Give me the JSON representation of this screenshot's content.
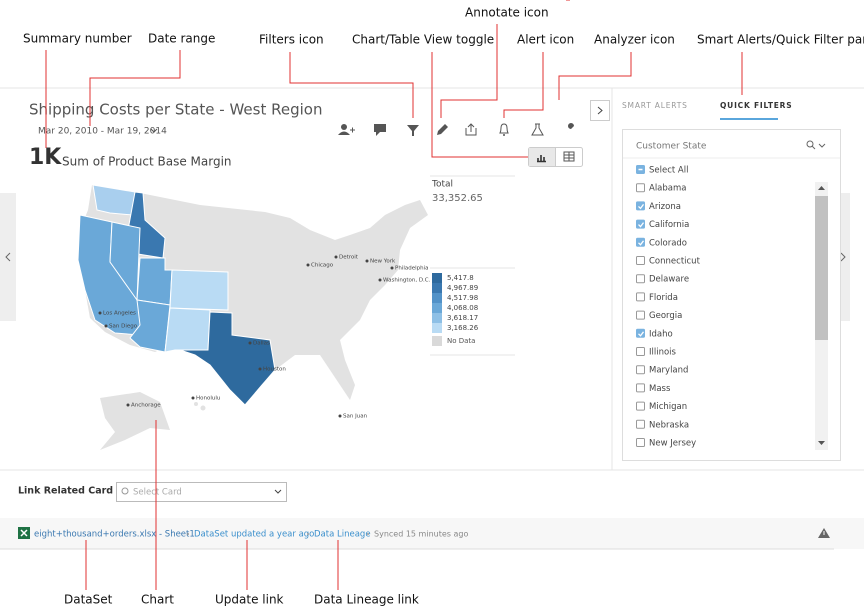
{
  "annotations": {
    "summary_number": "Summary number",
    "date_range": "Date range",
    "filters_icon": "Filters icon",
    "view_toggle": "Chart/Table View toggle",
    "annotate_icon": "Annotate icon",
    "alert_icon": "Alert icon",
    "analyzer_icon": "Analyzer icon",
    "panel": "Smart Alerts/Quick Filter pane",
    "dataset": "DataSet",
    "chart": "Chart",
    "update_link": "Update link",
    "lineage_link": "Data Lineage link"
  },
  "card": {
    "title": "Shipping Costs per State - West Region",
    "date_range": "Mar 20, 2010 - Mar 19, 2014",
    "summary_value": "1K",
    "summary_label": "Sum of Product Base Margin",
    "total_label": "Total",
    "total_value": "33,352.65",
    "legend": [
      "5,417.8",
      "4,967.89",
      "4,517.98",
      "4,068.08",
      "3,618.17",
      "3,168.26"
    ],
    "no_data": "No Data",
    "cities": [
      "Chicago",
      "Detroit",
      "New York",
      "Philadelphia",
      "Washington, D.C.",
      "Los Angeles",
      "San Diego",
      "Dallas",
      "Houston",
      "Anchorage",
      "Honolulu",
      "San Juan"
    ]
  },
  "panel": {
    "tabs": [
      "SMART ALERTS",
      "QUICK FILTERS"
    ],
    "active_tab": 1,
    "filter_title": "Customer State",
    "options": [
      {
        "label": "Select All",
        "checked": "partial"
      },
      {
        "label": "Alabama",
        "checked": false
      },
      {
        "label": "Arizona",
        "checked": true
      },
      {
        "label": "California",
        "checked": true
      },
      {
        "label": "Colorado",
        "checked": true
      },
      {
        "label": "Connecticut",
        "checked": false
      },
      {
        "label": "Delaware",
        "checked": false
      },
      {
        "label": "Florida",
        "checked": false
      },
      {
        "label": "Georgia",
        "checked": false
      },
      {
        "label": "Idaho",
        "checked": true
      },
      {
        "label": "Illinois",
        "checked": false
      },
      {
        "label": "Maryland",
        "checked": false
      },
      {
        "label": "Mass",
        "checked": false
      },
      {
        "label": "Michigan",
        "checked": false
      },
      {
        "label": "Nebraska",
        "checked": false
      },
      {
        "label": "New Jersey",
        "checked": false
      }
    ]
  },
  "related": {
    "label": "Link Related Card",
    "placeholder": "Select Card"
  },
  "footer": {
    "dataset": "eight+thousand+orders.xlsx - Sheet1",
    "update": "DataSet updated a year ago",
    "lineage": "Data Lineage",
    "synced": "Synced 15 minutes ago"
  }
}
